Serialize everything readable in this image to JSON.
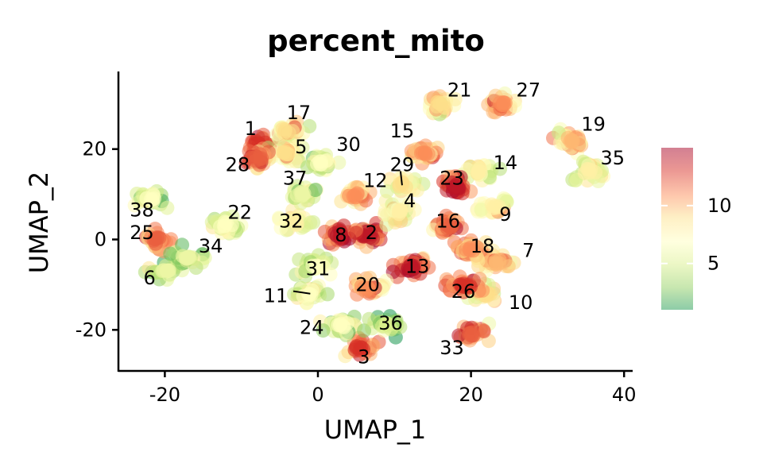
{
  "chart_data": {
    "type": "scatter",
    "title": "percent_mito",
    "xlabel": "UMAP_1",
    "ylabel": "UMAP_2",
    "xlim": [
      -26,
      41
    ],
    "ylim": [
      -29,
      37
    ],
    "xticks": [
      -20,
      0,
      20,
      40
    ],
    "yticks": [
      -20,
      0,
      20
    ],
    "xtick_labels": [
      "-20",
      "0",
      "20",
      "40"
    ],
    "ytick_labels": [
      "-20",
      "0",
      "20"
    ],
    "grid": false,
    "legend": {
      "type": "colorbar",
      "placement": "right",
      "range": [
        1,
        15
      ],
      "ticks": [
        5,
        10
      ],
      "tick_labels": [
        "5",
        "10"
      ],
      "colors": [
        "#1a9850",
        "#91cf60",
        "#d9ef8b",
        "#ffffbf",
        "#fee08b",
        "#fc8d59",
        "#d73027",
        "#a50026"
      ]
    },
    "clusters": [
      {
        "label": "1",
        "x": -7.5,
        "y": 21,
        "label_x": -8.8,
        "label_y": 24.5,
        "value": 13
      },
      {
        "label": "2",
        "x": 6.5,
        "y": 1,
        "label_x": 7,
        "label_y": 1.5,
        "value": 14
      },
      {
        "label": "3",
        "x": 5.5,
        "y": -24,
        "label_x": 6,
        "label_y": -26,
        "value": 13
      },
      {
        "label": "4",
        "x": 10.5,
        "y": 6,
        "label_x": 12,
        "label_y": 8.5,
        "value": 8
      },
      {
        "label": "5",
        "x": -4,
        "y": 19,
        "label_x": -2.2,
        "label_y": 20.5,
        "value": 9
      },
      {
        "label": "6",
        "x": -20,
        "y": -7,
        "label_x": -22,
        "label_y": -8.5,
        "value": 6
      },
      {
        "label": "7",
        "x": 23,
        "y": -5,
        "label_x": 27.5,
        "label_y": -2.5,
        "value": 10
      },
      {
        "label": "8",
        "x": 3,
        "y": 1,
        "label_x": 3,
        "label_y": 1,
        "value": 14
      },
      {
        "label": "9",
        "x": 23,
        "y": 7,
        "label_x": 24.5,
        "label_y": 5.5,
        "value": 8
      },
      {
        "label": "10",
        "x": 22,
        "y": -12,
        "label_x": 26.5,
        "label_y": -14,
        "value": 9
      },
      {
        "label": "11",
        "x": -1,
        "y": -12,
        "label_x": -5.5,
        "label_y": -12.5,
        "value": 7
      },
      {
        "label": "12",
        "x": 5,
        "y": 10,
        "label_x": 7.5,
        "label_y": 13,
        "value": 11
      },
      {
        "label": "13",
        "x": 12,
        "y": -6,
        "label_x": 13,
        "label_y": -6,
        "value": 14
      },
      {
        "label": "14",
        "x": 21,
        "y": 15,
        "label_x": 24.5,
        "label_y": 17,
        "value": 8
      },
      {
        "label": "15",
        "x": 14,
        "y": 19,
        "label_x": 11,
        "label_y": 24,
        "value": 11
      },
      {
        "label": "16",
        "x": 17,
        "y": 3,
        "label_x": 17,
        "label_y": 4,
        "value": 12
      },
      {
        "label": "17",
        "x": -4,
        "y": 24,
        "label_x": -2.5,
        "label_y": 28,
        "value": 9
      },
      {
        "label": "18",
        "x": 20,
        "y": -2,
        "label_x": 21.5,
        "label_y": -1.5,
        "value": 11
      },
      {
        "label": "19",
        "x": 33,
        "y": 22,
        "label_x": 36,
        "label_y": 25.5,
        "value": 10
      },
      {
        "label": "20",
        "x": 6.5,
        "y": -11,
        "label_x": 6.5,
        "label_y": -10,
        "value": 11
      },
      {
        "label": "21",
        "x": 16,
        "y": 30,
        "label_x": 18.5,
        "label_y": 33,
        "value": 9
      },
      {
        "label": "22",
        "x": -12,
        "y": 3,
        "label_x": -10.2,
        "label_y": 6,
        "value": 7
      },
      {
        "label": "23",
        "x": 18,
        "y": 12,
        "label_x": 17.5,
        "label_y": 13.5,
        "value": 14
      },
      {
        "label": "24",
        "x": 3,
        "y": -19,
        "label_x": -0.8,
        "label_y": -19.5,
        "value": 7
      },
      {
        "label": "25",
        "x": -21,
        "y": 0,
        "label_x": -23,
        "label_y": 1.5,
        "value": 12
      },
      {
        "label": "26",
        "x": 19,
        "y": -10,
        "label_x": 19,
        "label_y": -11.5,
        "value": 13
      },
      {
        "label": "27",
        "x": 24,
        "y": 30,
        "label_x": 27.5,
        "label_y": 33,
        "value": 11
      },
      {
        "label": "28",
        "x": -8,
        "y": 18,
        "label_x": -10.5,
        "label_y": 16.5,
        "value": 12
      },
      {
        "label": "29",
        "x": 11,
        "y": 12,
        "label_x": 11,
        "label_y": 16.5,
        "value": 9
      },
      {
        "label": "30",
        "x": 0.5,
        "y": 17,
        "label_x": 4,
        "label_y": 21,
        "value": 7
      },
      {
        "label": "31",
        "x": 0,
        "y": -6,
        "label_x": 0,
        "label_y": -6.5,
        "value": 7
      },
      {
        "label": "32",
        "x": -3,
        "y": 4,
        "label_x": -3.5,
        "label_y": 4,
        "value": 8
      },
      {
        "label": "33",
        "x": 20,
        "y": -21,
        "label_x": 17.5,
        "label_y": -24,
        "value": 12
      },
      {
        "label": "34",
        "x": -17,
        "y": -4,
        "label_x": -14,
        "label_y": -1.5,
        "value": 6
      },
      {
        "label": "35",
        "x": 35.5,
        "y": 15,
        "label_x": 38.5,
        "label_y": 18,
        "value": 8
      },
      {
        "label": "36",
        "x": 9,
        "y": -19,
        "label_x": 9.5,
        "label_y": -18.5,
        "value": 5
      },
      {
        "label": "37",
        "x": -2,
        "y": 10,
        "label_x": -3,
        "label_y": 13.5,
        "value": 6
      },
      {
        "label": "38",
        "x": -22,
        "y": 9,
        "label_x": -23,
        "label_y": 6.5,
        "value": 7
      }
    ]
  }
}
